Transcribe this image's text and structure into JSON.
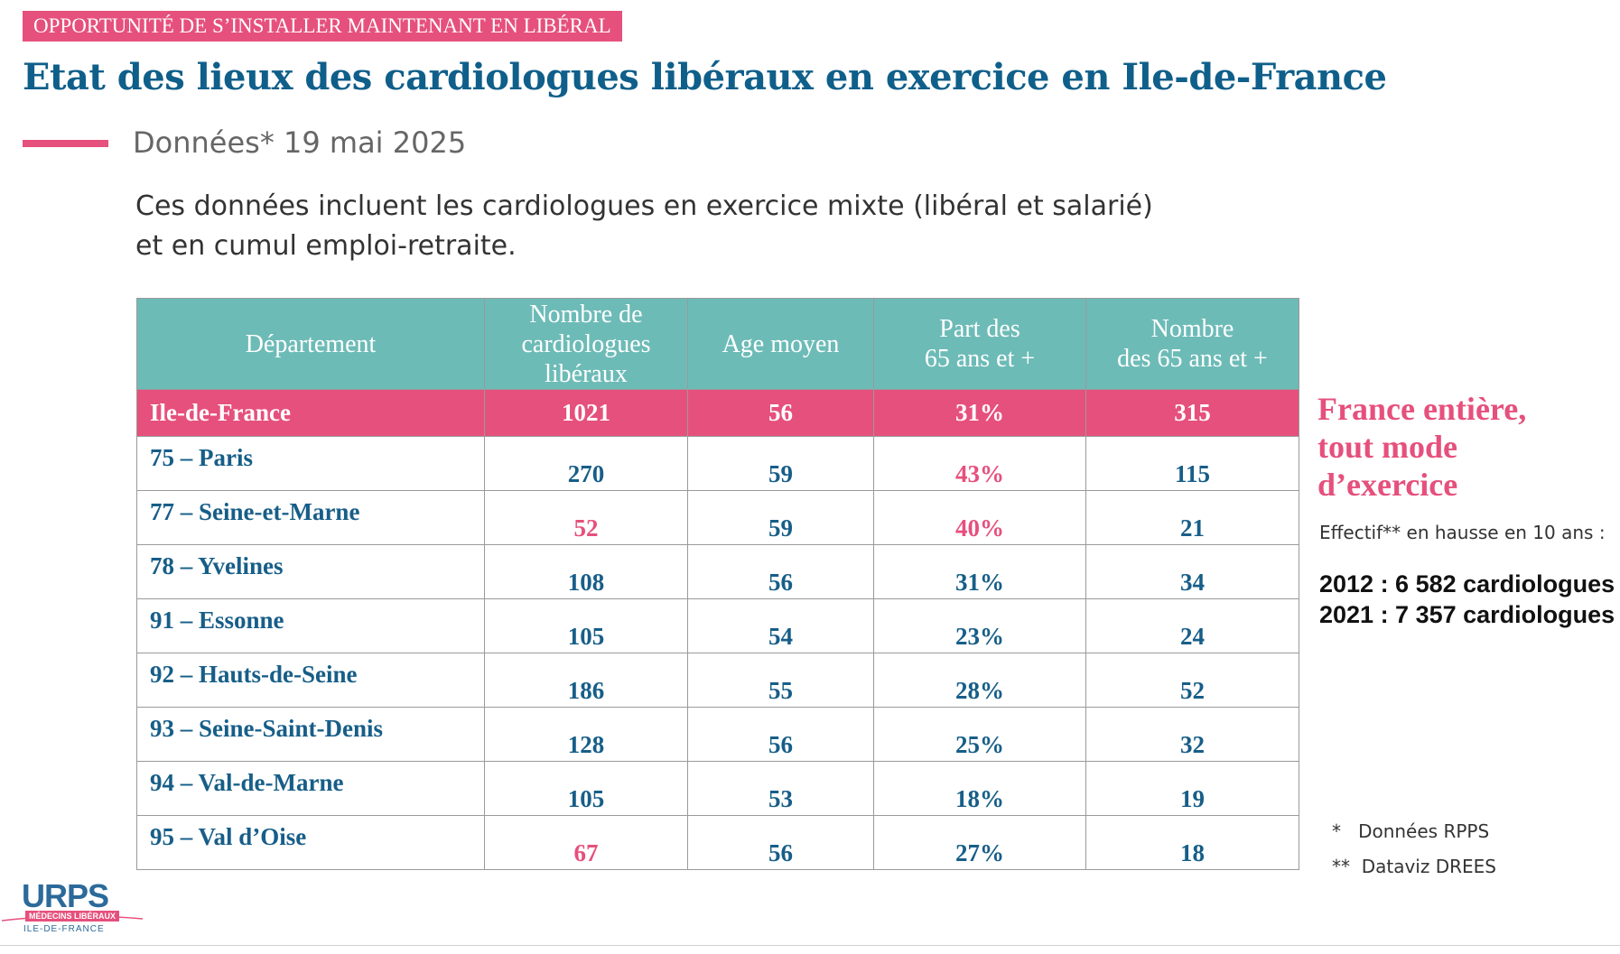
{
  "header": {
    "badge": "OPPORTUNITÉ DE S’INSTALLER MAINTENANT EN LIBÉRAL",
    "title": "Etat des lieux des cardiologues libéraux en exercice en Ile-de-France",
    "subtitle": "Données* 19 mai 2025"
  },
  "intro": {
    "line1": "Ces données incluent les cardiologues en exercice mixte (libéral et salarié)",
    "line2": "et en cumul emploi-retraite."
  },
  "table": {
    "columns": [
      "Département",
      "Nombre de cardiologues libéraux",
      "Age moyen",
      "Part des 65 ans et +",
      "Nombre des 65 ans et +"
    ],
    "header_lines": {
      "c0": [
        "Département"
      ],
      "c1": [
        "Nombre de",
        "cardiologues",
        "libéraux"
      ],
      "c2": [
        "Age moyen"
      ],
      "c3": [
        "Part des",
        "65 ans et +"
      ],
      "c4": [
        "Nombre",
        "des 65 ans et +"
      ]
    },
    "total_row": {
      "dept": "Ile-de-France",
      "count": "1021",
      "age": "56",
      "share": "31%",
      "senior": "315"
    },
    "rows": [
      {
        "dept": "75 – Paris",
        "count": "270",
        "age": "59",
        "share": "43%",
        "senior": "115"
      },
      {
        "dept": "77 – Seine-et-Marne",
        "count": "52",
        "age": "59",
        "share": "40%",
        "senior": "21"
      },
      {
        "dept": "78 – Yvelines",
        "count": "108",
        "age": "56",
        "share": "31%",
        "senior": "34"
      },
      {
        "dept": "91 – Essonne",
        "count": "105",
        "age": "54",
        "share": "23%",
        "senior": "24"
      },
      {
        "dept": "92 – Hauts-de-Seine",
        "count": "186",
        "age": "55",
        "share": "28%",
        "senior": "52"
      },
      {
        "dept": "93 – Seine-Saint-Denis",
        "count": "128",
        "age": "56",
        "share": "25%",
        "senior": "32"
      },
      {
        "dept": "94 – Val-de-Marne",
        "count": "105",
        "age": "53",
        "share": "18%",
        "senior": "19"
      },
      {
        "dept": "95 – Val d’Oise",
        "count": "67",
        "age": "56",
        "share": "27%",
        "senior": "18"
      }
    ],
    "highlight_color": "#e6507c",
    "header_color": "#6dbbb7",
    "text_color": "#175e88"
  },
  "sidebar": {
    "title_lines": [
      "France entière,",
      "tout mode",
      "d’exercice"
    ],
    "effectif": "Effectif** en hausse en 10 ans :",
    "counts": [
      "2012 : 6 582 cardiologues",
      "2021 : 7 357 cardiologues"
    ]
  },
  "footnotes": {
    "note1": "*   Données RPPS",
    "note2": "**  Dataviz DREES"
  },
  "logo": {
    "main": "URPS",
    "sub1": "MÉDECINS LIBÉRAUX",
    "sub2": "ILE-DE-FRANCE"
  }
}
